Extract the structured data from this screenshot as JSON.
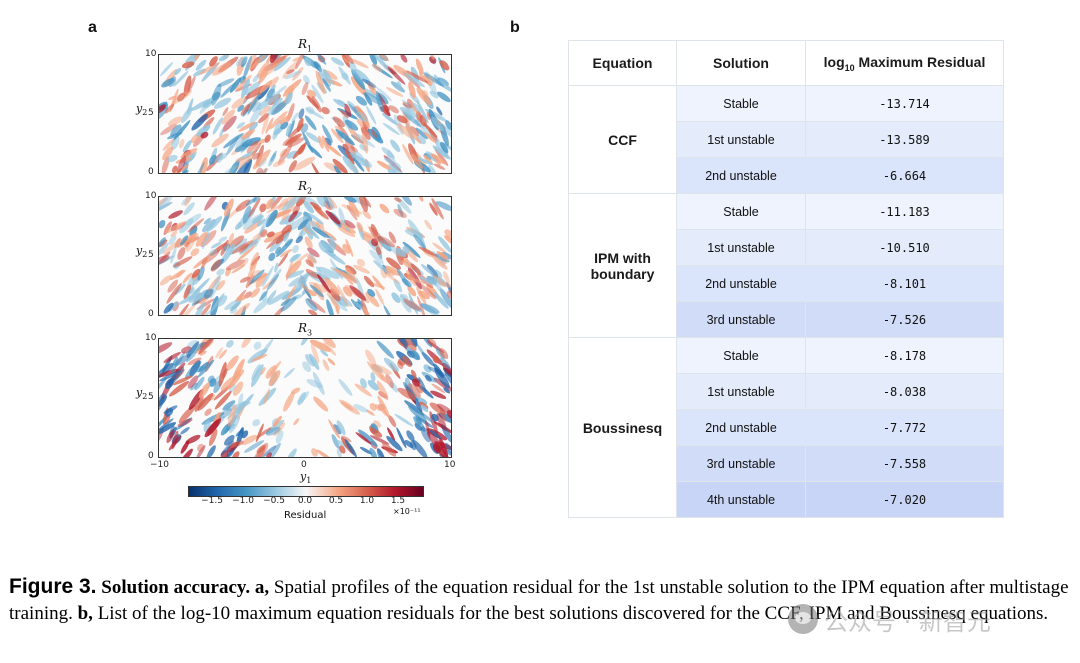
{
  "panel_a": {
    "letter": "a",
    "plots": [
      {
        "title_base": "R",
        "title_sub": "1"
      },
      {
        "title_base": "R",
        "title_sub": "2"
      },
      {
        "title_base": "R",
        "title_sub": "3"
      }
    ],
    "y_axis": {
      "label_base": "y",
      "label_sub": "2",
      "ticks": [
        "10",
        "5",
        "0"
      ]
    },
    "x_axis": {
      "label_base": "y",
      "label_sub": "1",
      "ticks": [
        "−10",
        "0",
        "10"
      ]
    },
    "colorbar": {
      "ticks": [
        "−1.5",
        "−1.0",
        "−0.5",
        "0.0",
        "0.5",
        "1.0",
        "1.5"
      ],
      "label": "Residual",
      "exponent": "×10⁻¹¹",
      "colors": [
        "#08306b",
        "#2166ac",
        "#4393c3",
        "#92c5de",
        "#f7f7f7",
        "#f4a582",
        "#d6604d",
        "#b2182b",
        "#67001f"
      ]
    }
  },
  "panel_b": {
    "letter": "b",
    "headers": {
      "equation": "Equation",
      "solution": "Solution",
      "residual_prefix": "log",
      "residual_sub": "10",
      "residual_suffix": " Maximum Residual"
    },
    "groups": [
      {
        "equation": "CCF",
        "rows": [
          {
            "solution": "Stable",
            "value": "-13.714"
          },
          {
            "solution": "1st unstable",
            "value": "-13.589"
          },
          {
            "solution": "2nd unstable",
            "value": "-6.664"
          }
        ]
      },
      {
        "equation_line1": "IPM with",
        "equation_line2": "boundary",
        "rows": [
          {
            "solution": "Stable",
            "value": "-11.183"
          },
          {
            "solution": "1st unstable",
            "value": "-10.510"
          },
          {
            "solution": "2nd unstable",
            "value": "-8.101"
          },
          {
            "solution": "3rd unstable",
            "value": "-7.526"
          }
        ]
      },
      {
        "equation": "Boussinesq",
        "rows": [
          {
            "solution": "Stable",
            "value": "-8.178"
          },
          {
            "solution": "1st unstable",
            "value": "-8.038"
          },
          {
            "solution": "2nd unstable",
            "value": "-7.772"
          },
          {
            "solution": "3rd unstable",
            "value": "-7.558"
          },
          {
            "solution": "4th unstable",
            "value": "-7.020"
          }
        ]
      }
    ]
  },
  "caption": {
    "figure_label": "Figure 3.",
    "bold_title": "Solution accuracy.",
    "a_label": "a,",
    "a_text": "Spatial profiles of the equation residual for the 1st unstable solution to the IPM equation after multistage training.",
    "b_label": "b,",
    "b_text": "List of the log-10 maximum equation residuals for the best solutions discovered for the CCF, IPM and Boussinesq equations."
  },
  "watermark": {
    "text": "公众号 · 新智元"
  }
}
